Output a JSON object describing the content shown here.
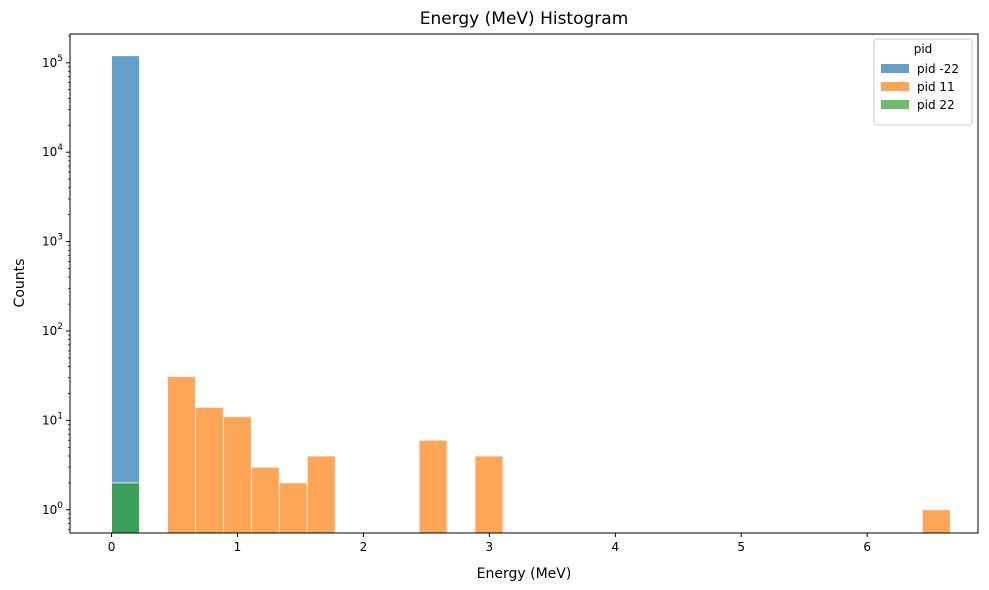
{
  "chart_data": {
    "type": "bar",
    "title": "Energy (MeV) Histogram",
    "xlabel": "Energy (MeV)",
    "ylabel": "Counts",
    "x_ticks": [
      "0",
      "1",
      "2",
      "3",
      "4",
      "5",
      "6"
    ],
    "x_tick_values": [
      0,
      1,
      2,
      3,
      4,
      5,
      6
    ],
    "y_scale": "log",
    "y_ticks": [
      {
        "base": "10",
        "exp": "0"
      },
      {
        "base": "10",
        "exp": "1"
      },
      {
        "base": "10",
        "exp": "2"
      },
      {
        "base": "10",
        "exp": "3"
      },
      {
        "base": "10",
        "exp": "4"
      },
      {
        "base": "10",
        "exp": "5"
      }
    ],
    "y_tick_values": [
      1,
      10,
      100,
      1000,
      10000,
      100000
    ],
    "xlim": [
      -0.33,
      6.88
    ],
    "ylim": [
      0.55,
      210000
    ],
    "bin_width": 0.222,
    "legend": {
      "title": "pid",
      "placement": "top-right"
    },
    "series": [
      {
        "name": "pid -22",
        "color": "#1f77b4",
        "opacity": 0.7,
        "bins": [
          {
            "x0": 0.0,
            "x1": 0.222,
            "count": 120000
          }
        ]
      },
      {
        "name": "pid 11",
        "color": "#ff7f0e",
        "opacity": 0.7,
        "bins": [
          {
            "x0": 0.444,
            "x1": 0.666,
            "count": 31
          },
          {
            "x0": 0.666,
            "x1": 0.888,
            "count": 14
          },
          {
            "x0": 0.888,
            "x1": 1.11,
            "count": 11
          },
          {
            "x0": 1.11,
            "x1": 1.332,
            "count": 3
          },
          {
            "x0": 1.332,
            "x1": 1.554,
            "count": 2
          },
          {
            "x0": 1.554,
            "x1": 1.776,
            "count": 4
          },
          {
            "x0": 2.442,
            "x1": 2.664,
            "count": 6
          },
          {
            "x0": 2.886,
            "x1": 3.108,
            "count": 4
          },
          {
            "x0": 6.438,
            "x1": 6.66,
            "count": 1
          }
        ]
      },
      {
        "name": "pid 22",
        "color": "#2ca02c",
        "opacity": 0.7,
        "bins": [
          {
            "x0": 0.0,
            "x1": 0.222,
            "count": 2
          }
        ]
      }
    ]
  }
}
